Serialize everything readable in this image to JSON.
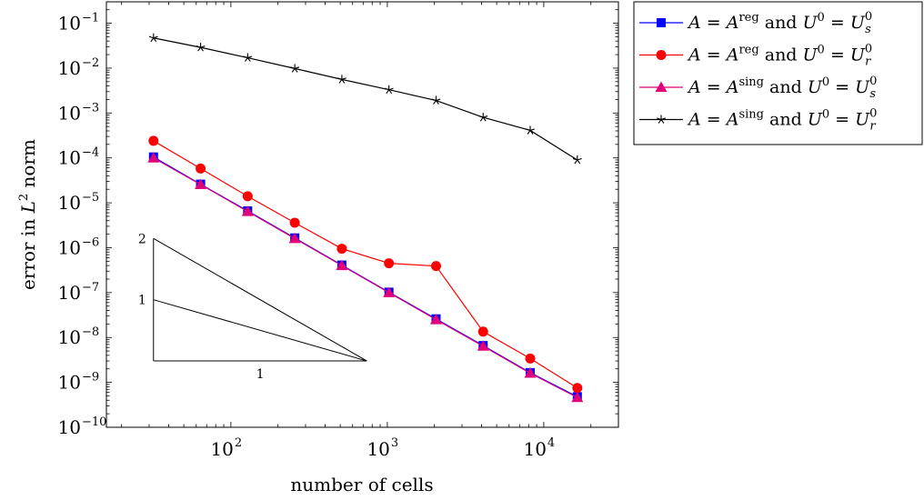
{
  "chart_data": {
    "type": "line",
    "xscale": "log",
    "yscale": "log",
    "xlabel": "number of cells",
    "ylabel_prefix": "error in ",
    "ylabel_var": "L",
    "ylabel_sup": "2",
    "ylabel_suffix": " norm",
    "xlim": [
      16,
      30000
    ],
    "ylim": [
      1e-10,
      0.3
    ],
    "x_ticks": [
      {
        "base": "10",
        "exp": "2",
        "value": 100
      },
      {
        "base": "10",
        "exp": "3",
        "value": 1000
      },
      {
        "base": "10",
        "exp": "4",
        "value": 10000
      }
    ],
    "y_ticks": [
      {
        "base": "10",
        "exp": "−10",
        "value": 1e-10
      },
      {
        "base": "10",
        "exp": "−9",
        "value": 1e-09
      },
      {
        "base": "10",
        "exp": "−8",
        "value": 1e-08
      },
      {
        "base": "10",
        "exp": "−7",
        "value": 1e-07
      },
      {
        "base": "10",
        "exp": "−6",
        "value": 1e-06
      },
      {
        "base": "10",
        "exp": "−5",
        "value": 1e-05
      },
      {
        "base": "10",
        "exp": "−4",
        "value": 0.0001
      },
      {
        "base": "10",
        "exp": "−3",
        "value": 0.001
      },
      {
        "base": "10",
        "exp": "−2",
        "value": 0.01
      },
      {
        "base": "10",
        "exp": "−1",
        "value": 0.1
      }
    ],
    "x": [
      32,
      64,
      128,
      256,
      512,
      1024,
      2048,
      4096,
      8192,
      16384
    ],
    "series": [
      {
        "label": {
          "A": "A",
          "eq1": " = ",
          "A2": "A",
          "sup": "reg",
          "and": " and ",
          "U": "U",
          "Usup": "0",
          "eq2": " = ",
          "U2": "U",
          "sub": "s",
          "sup2": "0"
        },
        "color": "#0000ff",
        "marker": "square",
        "values": [
          0.000105,
          2.6e-05,
          6.6e-06,
          1.65e-06,
          4.1e-07,
          1.02e-07,
          2.6e-08,
          6.6e-09,
          1.65e-09,
          4.8e-10
        ]
      },
      {
        "label": {
          "A": "A",
          "eq1": " = ",
          "A2": "A",
          "sup": "reg",
          "and": " and ",
          "U": "U",
          "Usup": "0",
          "eq2": " = ",
          "U2": "U",
          "sub": "r",
          "sup2": "0"
        },
        "color": "#ff0000",
        "marker": "circle",
        "values": [
          0.00024,
          5.8e-05,
          1.4e-05,
          3.6e-06,
          9.5e-07,
          4.5e-07,
          3.9e-07,
          1.35e-08,
          3.4e-09,
          7.5e-10
        ]
      },
      {
        "label": {
          "A": "A",
          "eq1": " = ",
          "A2": "A",
          "sup": "sing",
          "and": " and ",
          "U": "U",
          "Usup": "0",
          "eq2": " = ",
          "U2": "U",
          "sub": "s",
          "sup2": "0"
        },
        "color": "#e0007a",
        "marker": "triangle",
        "values": [
          0.0001,
          2.55e-05,
          6.4e-06,
          1.6e-06,
          4e-07,
          1e-07,
          2.5e-08,
          6.4e-09,
          1.6e-09,
          4.6e-10
        ]
      },
      {
        "label": {
          "A": "A",
          "eq1": " = ",
          "A2": "A",
          "sup": "sing",
          "and": " and ",
          "U": "U",
          "Usup": "0",
          "eq2": " = ",
          "U2": "U",
          "sub": "r",
          "sup2": "0"
        },
        "color": "#000000",
        "marker": "star",
        "values": [
          0.047,
          0.029,
          0.017,
          0.0098,
          0.0056,
          0.0033,
          0.0019,
          0.0008,
          0.00041,
          9e-05
        ]
      }
    ],
    "slope_triangle": {
      "label_top": "2",
      "label_mid": "1",
      "label_base": "1"
    },
    "legend_position": "outside-top-right",
    "grid": false
  }
}
